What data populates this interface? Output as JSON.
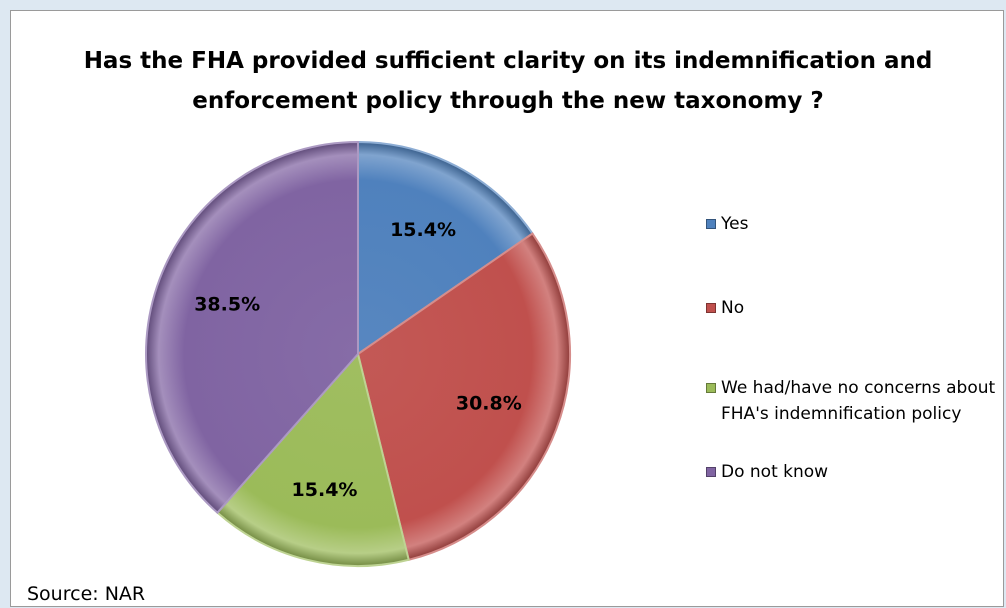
{
  "chart_data": {
    "type": "pie",
    "title": "Has the FHA provided sufficient clarity on its indemnification and enforcement policy through the new taxonomy ?",
    "title_lines": [
      "Has the FHA provided sufficient clarity on its indemnification and",
      "enforcement policy through the new taxonomy ?"
    ],
    "categories": [
      "Yes",
      "No",
      "We had/have no concerns about FHA's indemnification policy",
      "Do not know"
    ],
    "values": [
      15.4,
      30.8,
      15.4,
      38.5
    ],
    "labels": [
      "15.4%",
      "30.8%",
      "15.4%",
      "38.5%"
    ],
    "colors": [
      "#4f81bd",
      "#c0504d",
      "#9bbb59",
      "#8064a2"
    ],
    "legend_position": "right",
    "start_angle": "12 o'clock, clockwise"
  },
  "source": "Source: NAR"
}
